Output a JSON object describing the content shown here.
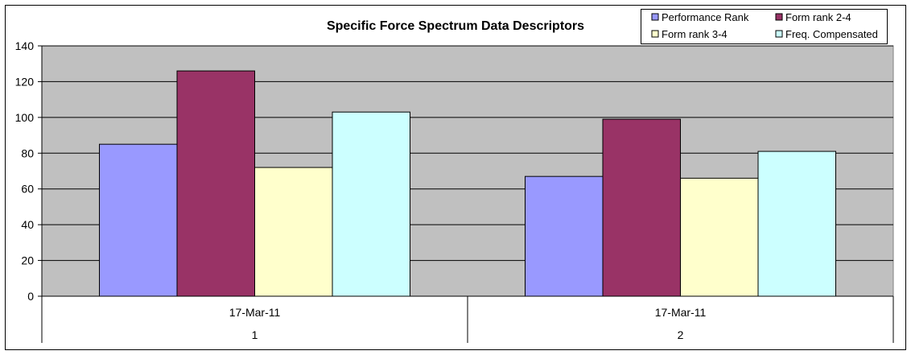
{
  "chart_data": {
    "type": "bar",
    "title": "Specific Force Spectrum Data Descriptors",
    "xlabel": "",
    "ylabel": "",
    "ylim": [
      0,
      140
    ],
    "y_ticks": [
      0,
      20,
      40,
      60,
      80,
      100,
      120,
      140
    ],
    "grid": true,
    "legend_position": "top-right",
    "categories": [
      {
        "date": "17-Mar-11",
        "index": "1"
      },
      {
        "date": "17-Mar-11",
        "index": "2"
      }
    ],
    "series": [
      {
        "name": "Performance Rank",
        "color": "#9999ff",
        "values": [
          85,
          67
        ]
      },
      {
        "name": "Form rank 2-4",
        "color": "#993366",
        "values": [
          126,
          99
        ]
      },
      {
        "name": "Form rank 3-4",
        "color": "#ffffcc",
        "values": [
          72,
          66
        ]
      },
      {
        "name": "Freq. Compensated",
        "color": "#ccffff",
        "values": [
          103,
          81
        ]
      }
    ],
    "colors": {
      "plot_background": "#c0c0c0",
      "gridline": "#000000"
    }
  }
}
